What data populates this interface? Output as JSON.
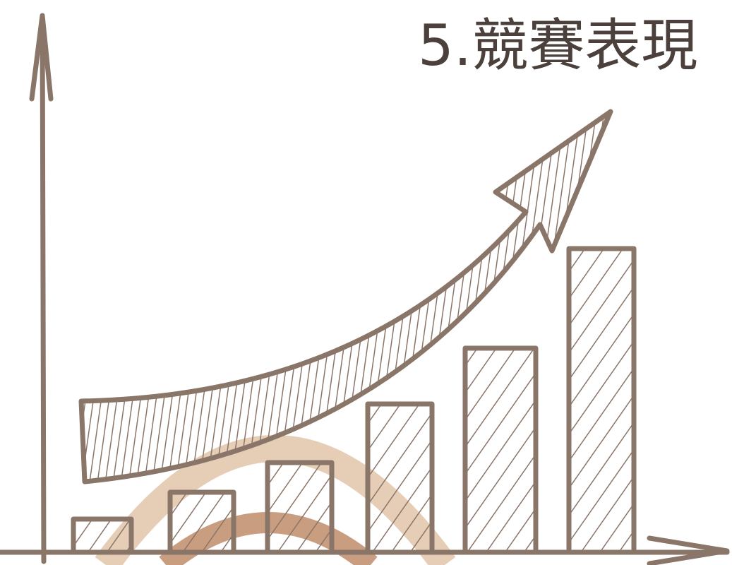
{
  "title": "5.競賽表現"
}
